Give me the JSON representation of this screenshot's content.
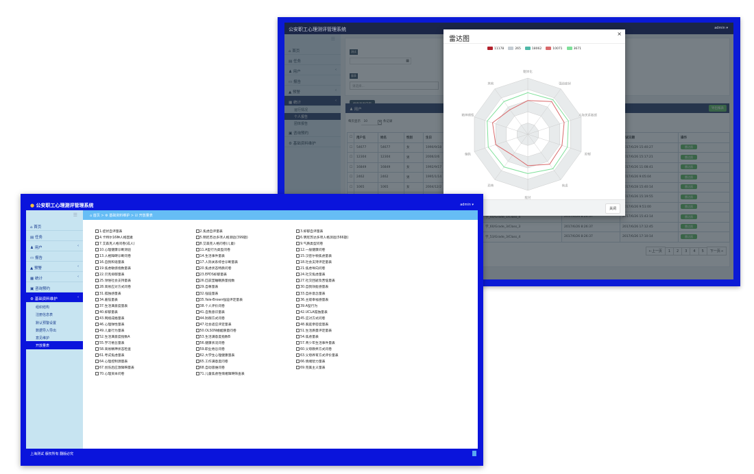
{
  "back": {
    "title": "公安职工心理测评管理系统",
    "user": "admin",
    "sidebar": [
      {
        "label": "首页",
        "icon": "home-icon"
      },
      {
        "label": "任务",
        "icon": "task-icon"
      },
      {
        "label": "用户",
        "icon": "user-icon",
        "chev": true
      },
      {
        "label": "报告",
        "icon": "folder-icon"
      },
      {
        "label": "预警",
        "icon": "warning-icon",
        "chev": true
      },
      {
        "label": "统计",
        "icon": "stats-icon",
        "chev": true,
        "active": true
      }
    ],
    "sub": [
      {
        "label": "运行情况"
      },
      {
        "label": "个人报告",
        "active": true
      },
      {
        "label": "团体报告"
      }
    ],
    "sidebar2": [
      {
        "label": "咨询预约",
        "icon": "calendar-icon"
      },
      {
        "label": "基础资料维护",
        "icon": "settings-icon"
      }
    ],
    "filter": {
      "label1": "测试",
      "label2": "量表",
      "placeholder": "请选择...",
      "search": "搜索查询内容"
    },
    "panel_title": "用户",
    "export": "导出报表",
    "page_size_label": "每页显示",
    "page_size": "10",
    "records": "条记录",
    "headers": [
      "用户名",
      "姓名",
      "性别",
      "生日",
      "所属班级",
      "注册日期",
      "测试日期",
      "操作"
    ],
    "rows": [
      [
        "54677",
        "54677",
        "女",
        "1990/9/18",
        "",
        "",
        "2017/6/29 15:40:27"
      ],
      [
        "12304",
        "12304",
        "男",
        "2006/2/6",
        "",
        "",
        "2017/6/26 15:17:21"
      ],
      [
        "16849",
        "16849",
        "女",
        "1992/9/17",
        "",
        "",
        "2017/6/26 11:08:41"
      ],
      [
        "2462",
        "2462",
        "男",
        "1995/1/14",
        "",
        "",
        "2017/6/26 9:05:04"
      ],
      [
        "1065",
        "1065",
        "女",
        "2004/12/2",
        "",
        "",
        "2017/6/28 15:40:14"
      ],
      [
        "",
        "",
        "",
        "",
        "",
        "",
        "2017/6/26 15:19:55"
      ],
      [
        "",
        "",
        "",
        "",
        "",
        "",
        "2017/6/26 9:51:00"
      ],
      [
        "",
        "",
        "",
        "",
        "学_40/Grade_1/Class_4",
        "2017/6/26 8:26:37",
        "2017/6/26 15:43:14"
      ],
      [
        "",
        "",
        "",
        "",
        "学_60/Grade_3/Class_3",
        "2017/6/26 8:26:37",
        "2017/6/26 17:12:45"
      ],
      [
        "",
        "",
        "",
        "",
        "学_53/Grade_3/Class_4",
        "2017/6/26 8:26:37",
        "2017/6/26 17:10:14"
      ]
    ],
    "row_button": "雷达图",
    "pagination": [
      "←上一页",
      "1",
      "2",
      "3",
      "4",
      "5",
      "下一页→"
    ]
  },
  "modal": {
    "title": "雷达图",
    "close_label": "关闭"
  },
  "chart_data": {
    "type": "radar",
    "indicators": [
      "躯体化",
      "强迫症状",
      "人际关系敏感",
      "抑郁",
      "焦虑",
      "敌对",
      "恐怖",
      "偏执",
      "精神病性",
      "其他"
    ],
    "max": 5,
    "legend": [
      {
        "name": "11178",
        "color": "#b3212c"
      },
      {
        "name": "265",
        "color": "#c4ccd3"
      },
      {
        "name": "18062",
        "color": "#4fb8a8"
      },
      {
        "name": "10071",
        "color": "#d9686a"
      },
      {
        "name": "3671",
        "color": "#7fe09a"
      }
    ],
    "series": [
      {
        "name": "10071",
        "color": "#d9686a",
        "values": [
          3.0,
          3.6,
          3.4,
          3.2,
          3.3,
          2.8,
          2.3,
          3.0,
          3.3,
          2.7
        ]
      },
      {
        "name": "3671",
        "color": "#7fe09a",
        "values": [
          3.7,
          3.8,
          3.8,
          3.7,
          3.8,
          3.5,
          3.6,
          3.7,
          3.8,
          3.6
        ]
      }
    ]
  },
  "front": {
    "title": "公安职工心理测评管理系统",
    "user": "admin",
    "sidebar": [
      {
        "label": "首页",
        "icon": "home-icon"
      },
      {
        "label": "任务",
        "icon": "task-icon"
      },
      {
        "label": "用户",
        "icon": "user-icon",
        "chev": true
      },
      {
        "label": "报告",
        "icon": "folder-icon"
      },
      {
        "label": "预警",
        "icon": "warning-icon",
        "chev": true
      },
      {
        "label": "统计",
        "icon": "stats-icon",
        "chev": true
      },
      {
        "label": "咨询预约",
        "icon": "calendar-icon"
      },
      {
        "label": "基础资料维护",
        "icon": "settings-icon",
        "chev": true,
        "active": true
      }
    ],
    "sub": [
      {
        "label": "组织结构"
      },
      {
        "label": "注册信息表"
      },
      {
        "label": "默认预警设置"
      },
      {
        "label": "数据导入导出"
      },
      {
        "label": "意见维护"
      },
      {
        "label": "开放量表",
        "active": true
      }
    ],
    "breadcrumb": [
      "首页",
      "基础资料维护",
      "开放量表"
    ],
    "footer": "上海测试 版权所有 翻版必究",
    "scales": [
      "1.症状自评量表",
      "2.焦虑自评量表",
      "3.抑郁自评量表",
      "4.卡特尔16种人格因素",
      "5.明尼苏达多项人格测验(399题)",
      "6.明尼苏达多项人格测验(566题)",
      "7.艾森克人格问卷(成人)",
      "8.艾森克人格问卷(儿童)",
      "9.气质类型问卷",
      "10.心理健康诊断测验",
      "11.A型行为类型问卷",
      "12.一般健康问卷",
      "13.人格障碍诊断问卷",
      "14.生活事件量表",
      "15.汉密尔顿焦虑量表",
      "16.自我和谐量表",
      "17.人际关系综合诊断量表",
      "18.社会支持评定量表",
      "19.焦虑敏感指数量表",
      "20.焦虑状态特质问卷",
      "21.焦虑导向问卷",
      "22.贝克抑郁量表",
      "23.EPDS抑郁量表",
      "24.社交焦虑量表",
      "25.领悟社会支持量表",
      "26.匹兹堡睡眠质量指数",
      "27.社交回避及苦恼量表",
      "28.简易应对方式问卷",
      "29.自尊量表",
      "30.自我效能感量表",
      "31.孤独感量表",
      "32.强迫量表",
      "33.自杀意念量表",
      "34.羞怯量表",
      "35.Yale-Brown强迫评定量表",
      "36.主观幸福感量表",
      "37.生活满意度量表",
      "38.个人评价问卷",
      "39.A型行为",
      "40.抑郁量表",
      "41.自我意识量表",
      "42.UCLA孤独量表",
      "43.网络成瘾量表",
      "44.防御方式问卷",
      "45.应对方式问卷",
      "46.心理弹性量表",
      "47.社会适应评定量表",
      "48.家庭亲密度量表",
      "49.儿童行为量表",
      "50.OLSON婚姻质量问卷",
      "51.生活质量评定量表",
      "52.生活满意度指数A",
      "53.生活满意度指数B",
      "54.焦虑量表",
      "55.学习倦怠量表",
      "56.健康状况问卷",
      "57.青少年生活事件量表",
      "58.简易精神状态检查",
      "59.职业倦怠问卷",
      "60.父母教养方式问卷",
      "61.考试焦虑量表",
      "62.大学生心理健康量表",
      "63.父母养育方式评价量表",
      "64.心理控制源量表",
      "65.工作满意度问卷",
      "66.情绪智力量表",
      "67.创伤后应激障碍量表",
      "68.自动思维问卷",
      "69.完美主义量表",
      "70.心理资本问卷",
      "71.儿童焦虑性情绪障碍筛查表"
    ]
  }
}
